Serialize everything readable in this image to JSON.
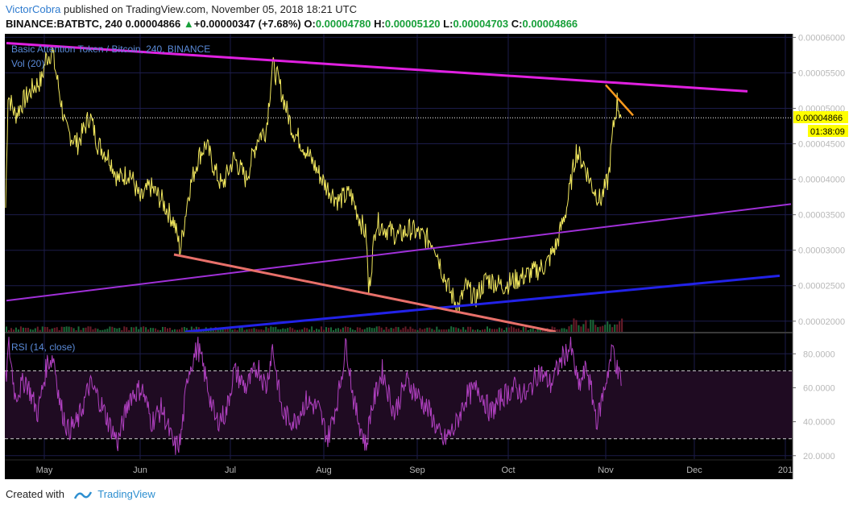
{
  "header": {
    "author": "VictorCobra",
    "published_text": "published on TradingView.com, November 05, 2018 18:21 UTC"
  },
  "ohlc_bar": {
    "symbol": "BINANCE:BATBTC, 240",
    "price": "0.00004866",
    "change_arrow": "▲",
    "change": "+0.00000347 (+7.68%)",
    "o_label": "O:",
    "o_value": "0.00004780",
    "h_label": "H:",
    "h_value": "0.00005120",
    "l_label": "L:",
    "l_value": "0.00004703",
    "c_label": "C:",
    "c_value": "0.00004866"
  },
  "footer": {
    "created_with": "Created with",
    "brand": "TradingView"
  },
  "colors": {
    "background": "#000000",
    "grid": "#1c1c4a",
    "candles": "#f2e85e",
    "upper_trendline": "#e020e0",
    "channel_line": "#a030d8",
    "support_line": "#2222e8",
    "falling_line": "#e8706a",
    "orange_line": "#ff9a1e",
    "rsi_line": "#b040c0",
    "rsi_band": "#1f0b22",
    "price_tag": "#ffff00",
    "axis_text": "#b8b8b8",
    "legend_text": "#5a8ad8"
  },
  "chart_data": [
    {
      "type": "line",
      "title": "Basic Attention Token / Bitcoin, 240, BINANCE",
      "series_label": "Vol (20)",
      "ylim": [
        1.85e-05,
        6.05e-05
      ],
      "yticks": [
        "0.00006000",
        "0.00005500",
        "0.00005000",
        "0.00004500",
        "0.00004000",
        "0.00003500",
        "0.00003000",
        "0.00002500",
        "0.00002000"
      ],
      "xticks": [
        "May",
        "Jun",
        "Jul",
        "Aug",
        "Sep",
        "Oct",
        "Nov",
        "Dec",
        "201"
      ],
      "price_key_points": [
        [
          0,
          3.6e-05
        ],
        [
          3,
          5.2e-05
        ],
        [
          12,
          4.9e-05
        ],
        [
          22,
          5.1e-05
        ],
        [
          35,
          5.3e-05
        ],
        [
          45,
          5.4e-05
        ],
        [
          50,
          5.7e-05
        ],
        [
          58,
          5.8e-05
        ],
        [
          66,
          5.3e-05
        ],
        [
          75,
          4.7e-05
        ],
        [
          90,
          4.5e-05
        ],
        [
          105,
          4.9e-05
        ],
        [
          115,
          4.5e-05
        ],
        [
          130,
          4.3e-05
        ],
        [
          140,
          4e-05
        ],
        [
          155,
          4.1e-05
        ],
        [
          168,
          3.7e-05
        ],
        [
          180,
          3.9e-05
        ],
        [
          195,
          3.7e-05
        ],
        [
          210,
          3.4e-05
        ],
        [
          218,
          3e-05
        ],
        [
          228,
          3.8e-05
        ],
        [
          240,
          4.3e-05
        ],
        [
          250,
          4.5e-05
        ],
        [
          262,
          4.1e-05
        ],
        [
          270,
          3.9e-05
        ],
        [
          285,
          4.3e-05
        ],
        [
          300,
          4e-05
        ],
        [
          315,
          4.6e-05
        ],
        [
          325,
          4.7e-05
        ],
        [
          333,
          5.6e-05
        ],
        [
          340,
          5.4e-05
        ],
        [
          350,
          5e-05
        ],
        [
          358,
          4.7e-05
        ],
        [
          370,
          4.5e-05
        ],
        [
          385,
          4.2e-05
        ],
        [
          400,
          3.9e-05
        ],
        [
          415,
          3.7e-05
        ],
        [
          430,
          3.8e-05
        ],
        [
          440,
          3.5e-05
        ],
        [
          450,
          3.2e-05
        ],
        [
          453,
          2.4e-05
        ],
        [
          462,
          3.4e-05
        ],
        [
          475,
          3.3e-05
        ],
        [
          490,
          3.2e-05
        ],
        [
          505,
          3.3e-05
        ],
        [
          520,
          3.2e-05
        ],
        [
          535,
          3.1e-05
        ],
        [
          545,
          2.7e-05
        ],
        [
          555,
          2.4e-05
        ],
        [
          565,
          2.2e-05
        ],
        [
          575,
          2.5e-05
        ],
        [
          585,
          2.3e-05
        ],
        [
          600,
          2.6e-05
        ],
        [
          620,
          2.5e-05
        ],
        [
          640,
          2.6e-05
        ],
        [
          660,
          2.7e-05
        ],
        [
          675,
          2.8e-05
        ],
        [
          688,
          3.1e-05
        ],
        [
          700,
          3.6e-05
        ],
        [
          712,
          4.4e-05
        ],
        [
          722,
          4.2e-05
        ],
        [
          732,
          3.9e-05
        ],
        [
          742,
          3.7e-05
        ],
        [
          752,
          4e-05
        ],
        [
          758,
          4.7e-05
        ],
        [
          763,
          5.1e-05
        ],
        [
          768,
          4.87e-05
        ]
      ],
      "current_price": "0.00004866",
      "countdown": "01:38:09",
      "trendlines": [
        {
          "name": "upper-resistance",
          "points": [
            [
              8,
              5.92e-05
            ],
            [
              928,
              5.24e-05
            ]
          ]
        },
        {
          "name": "rising-channel",
          "points": [
            [
              8,
              2.29e-05
            ],
            [
              982,
              3.65e-05
            ]
          ]
        },
        {
          "name": "support",
          "points": [
            [
              230,
              1.85e-05
            ],
            [
              968,
              2.64e-05
            ]
          ]
        },
        {
          "name": "falling",
          "points": [
            [
              216,
              2.94e-05
            ],
            [
              690,
              1.85e-05
            ]
          ]
        },
        {
          "name": "short-term",
          "points": [
            [
              752,
              5.33e-05
            ],
            [
              786,
              4.9e-05
            ]
          ]
        }
      ]
    },
    {
      "type": "line",
      "title": "RSI (14, close)",
      "ylim": [
        18,
        92
      ],
      "yticks": [
        "80.0000",
        "60.0000",
        "40.0000",
        "20.0000"
      ],
      "bands": [
        30,
        70
      ],
      "rsi_key_points": [
        [
          0,
          63
        ],
        [
          4,
          85
        ],
        [
          12,
          55
        ],
        [
          25,
          65
        ],
        [
          40,
          45
        ],
        [
          52,
          75
        ],
        [
          60,
          78
        ],
        [
          68,
          50
        ],
        [
          78,
          35
        ],
        [
          90,
          40
        ],
        [
          105,
          62
        ],
        [
          115,
          55
        ],
        [
          130,
          38
        ],
        [
          140,
          28
        ],
        [
          155,
          55
        ],
        [
          170,
          60
        ],
        [
          182,
          40
        ],
        [
          195,
          48
        ],
        [
          210,
          25
        ],
        [
          218,
          28
        ],
        [
          228,
          70
        ],
        [
          240,
          84
        ],
        [
          250,
          65
        ],
        [
          262,
          40
        ],
        [
          275,
          45
        ],
        [
          285,
          70
        ],
        [
          300,
          60
        ],
        [
          315,
          73
        ],
        [
          325,
          60
        ],
        [
          333,
          84
        ],
        [
          345,
          45
        ],
        [
          360,
          40
        ],
        [
          375,
          52
        ],
        [
          390,
          48
        ],
        [
          402,
          30
        ],
        [
          415,
          55
        ],
        [
          425,
          86
        ],
        [
          435,
          50
        ],
        [
          450,
          25
        ],
        [
          455,
          45
        ],
        [
          470,
          70
        ],
        [
          485,
          45
        ],
        [
          500,
          64
        ],
        [
          515,
          55
        ],
        [
          530,
          45
        ],
        [
          545,
          28
        ],
        [
          560,
          36
        ],
        [
          575,
          55
        ],
        [
          590,
          60
        ],
        [
          605,
          45
        ],
        [
          620,
          55
        ],
        [
          635,
          60
        ],
        [
          650,
          55
        ],
        [
          665,
          70
        ],
        [
          680,
          62
        ],
        [
          695,
          78
        ],
        [
          705,
          84
        ],
        [
          715,
          60
        ],
        [
          725,
          72
        ],
        [
          738,
          40
        ],
        [
          748,
          62
        ],
        [
          758,
          84
        ],
        [
          764,
          68
        ],
        [
          768,
          65
        ]
      ]
    }
  ]
}
